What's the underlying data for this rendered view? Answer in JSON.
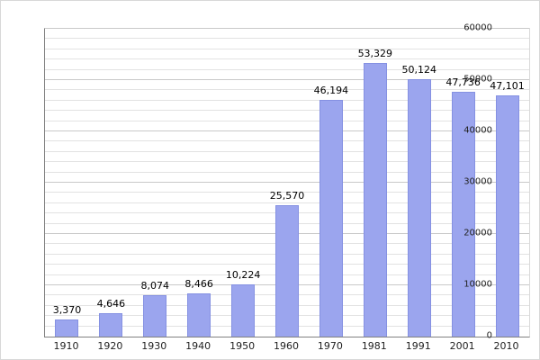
{
  "chart_data": {
    "type": "bar",
    "title": "",
    "xlabel": "",
    "ylabel": "",
    "categories": [
      "1910",
      "1920",
      "1930",
      "1940",
      "1950",
      "1960",
      "1970",
      "1981",
      "1991",
      "2001",
      "2010"
    ],
    "values": [
      3370,
      4646,
      8074,
      8466,
      10224,
      25570,
      46194,
      53329,
      50124,
      47736,
      47101
    ],
    "value_labels": [
      "3,370",
      "4,646",
      "8,074",
      "8,466",
      "10,224",
      "25,570",
      "46,194",
      "53,329",
      "50,124",
      "47,736",
      "47,101"
    ],
    "ylim": [
      0,
      60000
    ],
    "ytick_step": 10000,
    "minor_step": 2000,
    "ytick_labels": [
      "0",
      "10000",
      "20000",
      "30000",
      "40000",
      "50000",
      "60000"
    ],
    "grid": true,
    "legend": false,
    "colors": {
      "bar_fill": "#9ba5ee",
      "bar_border": "#8591e2",
      "gridline_minor": "#e2e2e2",
      "gridline_major": "#c9c9c9",
      "axis": "#808080",
      "label_text": "#000000",
      "background": "#ffffff"
    }
  }
}
